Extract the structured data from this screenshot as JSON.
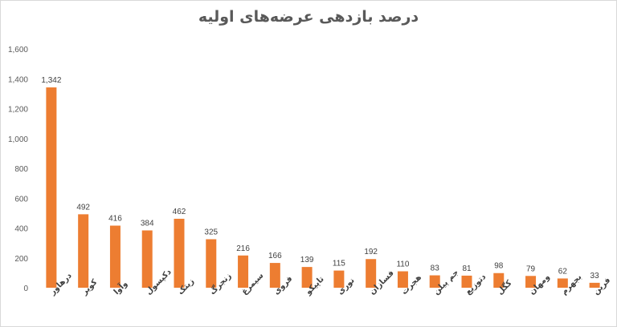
{
  "chart_data": {
    "type": "bar",
    "title": "درصد بازدهی عرضه‌های اولیه",
    "categories": [
      "درهاور",
      "کویر",
      "وآوا",
      "دکپسول",
      "زیتک",
      "زنجرگ",
      "سیمرغ",
      "فروی",
      "تاپیکو",
      "نوری",
      "فسازان",
      "هجرت",
      "جم پیلن",
      "دتوزیع",
      "کگل",
      "ومهان",
      "بجهرم",
      "فرین"
    ],
    "values": [
      1342,
      492,
      416,
      384,
      462,
      325,
      216,
      166,
      139,
      115,
      192,
      110,
      83,
      81,
      98,
      79,
      62,
      33
    ],
    "value_labels": [
      "1,342",
      "492",
      "416",
      "384",
      "462",
      "325",
      "216",
      "166",
      "139",
      "115",
      "192",
      "110",
      "83",
      "81",
      "98",
      "79",
      "62",
      "33"
    ],
    "ylim": [
      0,
      1600
    ],
    "y_ticks": [
      "0",
      "200",
      "400",
      "600",
      "800",
      "1,000",
      "1,200",
      "1,400",
      "1,600"
    ],
    "grid": false,
    "bar_color": "#ed7d31"
  }
}
